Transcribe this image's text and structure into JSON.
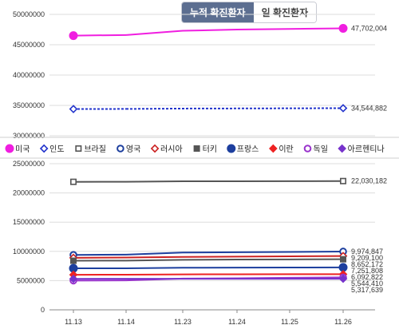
{
  "tabs": {
    "cumulative_label": "누적 확진환자",
    "daily_label": "일 확진환자"
  },
  "colors": {
    "tab_active": "#5c6e90",
    "grid": "#dddddd"
  },
  "chart_data": [
    {
      "type": "line",
      "panel": "top",
      "title": "",
      "xlabel": "",
      "ylabel": "",
      "ylim": [
        30000000,
        50000000
      ],
      "yticks": [
        "30000000",
        "35000000",
        "40000000",
        "45000000",
        "50000000"
      ],
      "grid": true,
      "categories": [
        "11.13",
        "11.14",
        "11.23",
        "11.24",
        "11.25",
        "11.26"
      ],
      "series": [
        {
          "name": "미국",
          "color": "#f01ee0",
          "marker": "circle-filled",
          "dashed": false,
          "values": [
            46500000,
            46600000,
            47300000,
            47500000,
            47600000,
            47702004
          ],
          "end_label": "47,702,004"
        },
        {
          "name": "인도",
          "color": "#2233cc",
          "marker": "diamond-open",
          "dashed": true,
          "values": [
            34400000,
            34420000,
            34480000,
            34500000,
            34520000,
            34544882
          ],
          "end_label": "34,544,882"
        }
      ]
    },
    {
      "type": "line",
      "panel": "bottom",
      "title": "",
      "xlabel": "",
      "ylabel": "",
      "ylim": [
        0,
        25000000
      ],
      "yticks": [
        "0",
        "5000000",
        "10000000",
        "15000000",
        "20000000",
        "25000000"
      ],
      "grid": true,
      "categories": [
        "11.13",
        "11.14",
        "11.23",
        "11.24",
        "11.25",
        "11.26"
      ],
      "series": [
        {
          "name": "브라질",
          "color": "#555555",
          "marker": "square-open",
          "dashed": false,
          "values": [
            21900000,
            21910000,
            21990000,
            22000000,
            22010000,
            22030182
          ],
          "end_label": "22,030,182"
        },
        {
          "name": "영국",
          "color": "#1d3f9e",
          "marker": "circle-open",
          "dashed": false,
          "values": [
            9400000,
            9450000,
            9800000,
            9850000,
            9900000,
            9974847
          ],
          "end_label": "9,974,847"
        },
        {
          "name": "러시아",
          "color": "#cc2222",
          "marker": "diamond-open",
          "dashed": false,
          "values": [
            8900000,
            8950000,
            9050000,
            9100000,
            9150000,
            9209100
          ],
          "end_label": "9,209,100"
        },
        {
          "name": "터키",
          "color": "#555555",
          "marker": "square-filled",
          "dashed": false,
          "values": [
            8400000,
            8420000,
            8560000,
            8600000,
            8630000,
            8652172
          ],
          "end_label": "8,652,172"
        },
        {
          "name": "프랑스",
          "color": "#1d3f9e",
          "marker": "circle-filled",
          "dashed": false,
          "values": [
            7100000,
            7110000,
            7200000,
            7220000,
            7240000,
            7251808
          ],
          "end_label": "7,251,808"
        },
        {
          "name": "이란",
          "color": "#ee2222",
          "marker": "diamond-filled",
          "dashed": false,
          "values": [
            6000000,
            6010000,
            6070000,
            6080000,
            6090000,
            6092822
          ],
          "end_label": "6,092,822"
        },
        {
          "name": "독일",
          "color": "#9933cc",
          "marker": "circle-open",
          "dashed": false,
          "values": [
            5000000,
            5030000,
            5350000,
            5400000,
            5480000,
            5544410
          ],
          "end_label": "5,544,410"
        },
        {
          "name": "아르헨티나",
          "color": "#7733cc",
          "marker": "diamond-filled",
          "dashed": false,
          "values": [
            5300000,
            5305000,
            5310000,
            5313000,
            5315000,
            5317639
          ],
          "end_label": "5,317,639"
        }
      ]
    }
  ]
}
